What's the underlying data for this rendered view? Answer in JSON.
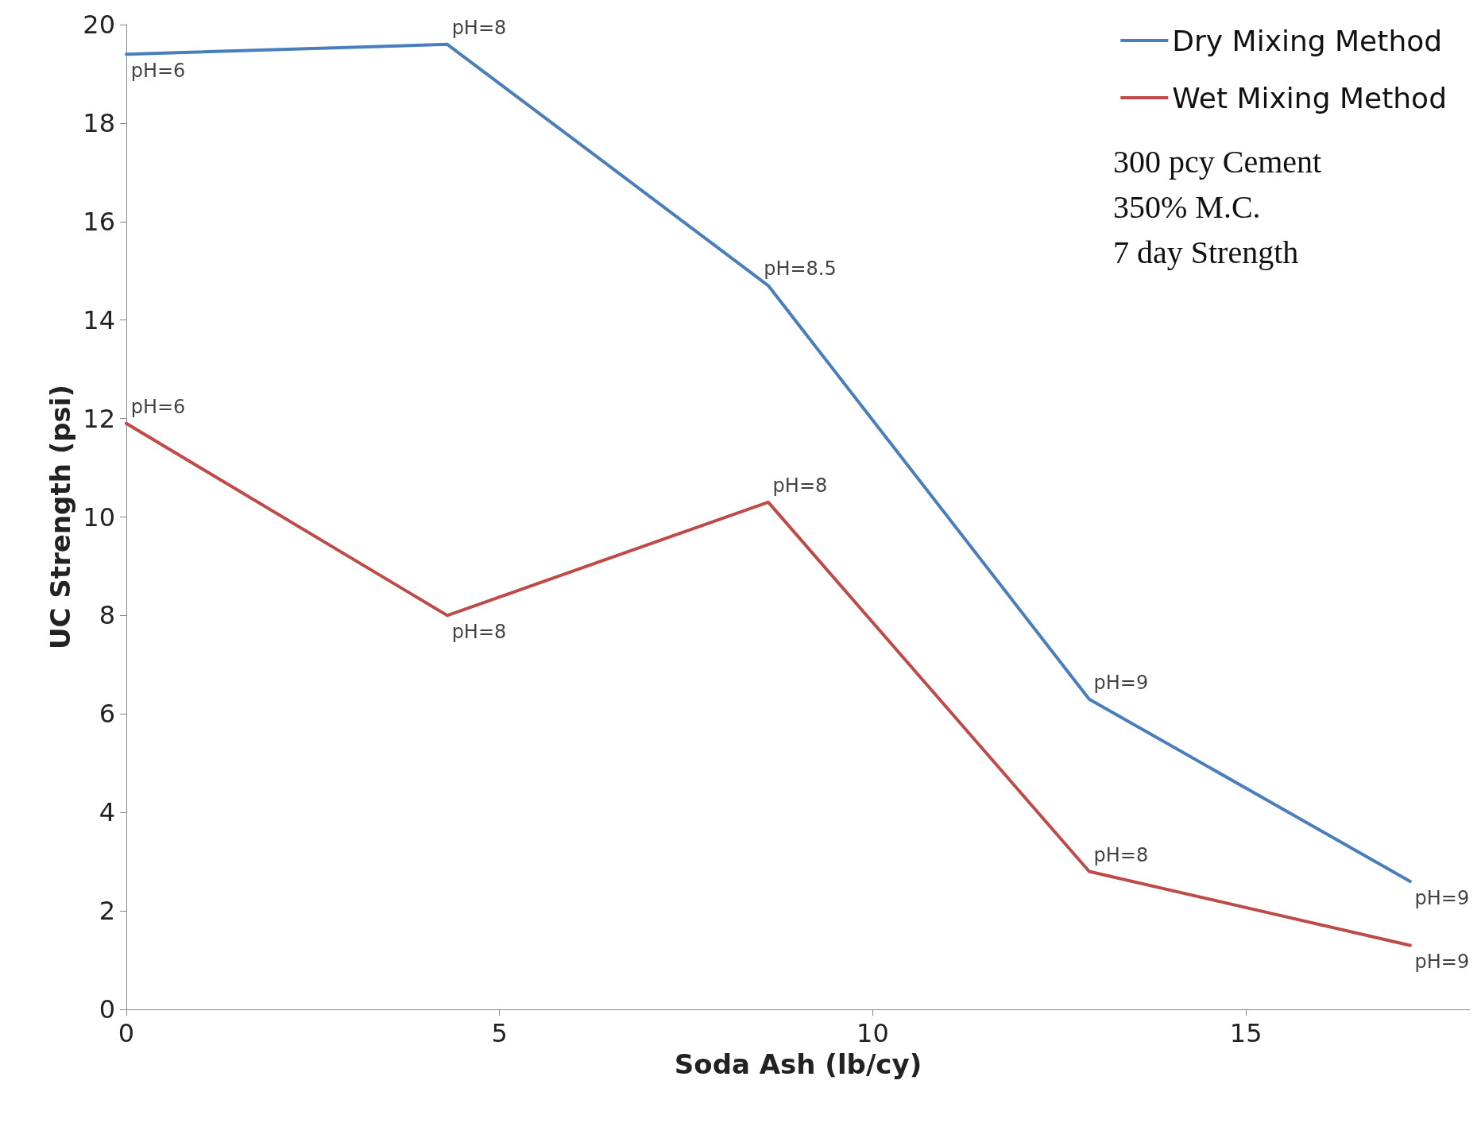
{
  "chart_data": {
    "type": "line",
    "xlabel": "Soda Ash (lb/cy)",
    "ylabel": "UC Strength (psi)",
    "x": [
      0,
      4.3,
      8.6,
      12.9,
      17.2
    ],
    "series": [
      {
        "name": "Dry Mixing Method",
        "color": "#4a7ebb",
        "values": [
          19.4,
          19.6,
          14.7,
          6.3,
          2.6
        ]
      },
      {
        "name": "Wet Mixing Method",
        "color": "#be4b48",
        "values": [
          11.9,
          8.0,
          10.3,
          2.8,
          1.3
        ]
      }
    ],
    "xlim": [
      0,
      18
    ],
    "xticks": [
      0,
      5,
      10,
      15
    ],
    "ylim": [
      0,
      20
    ],
    "yticks": [
      0,
      2,
      4,
      6,
      8,
      10,
      12,
      14,
      16,
      18,
      20
    ],
    "grid": false,
    "legend": "top right",
    "marker": "none",
    "line_style": "solid",
    "annotations": [
      {
        "text": "pH=6",
        "x": 0,
        "y": 19.4
      },
      {
        "text": "pH=8",
        "x": 4.3,
        "y": 19.6
      },
      {
        "text": "pH=8.5",
        "x": 8.6,
        "y": 14.7
      },
      {
        "text": "pH=9",
        "x": 12.9,
        "y": 6.3
      },
      {
        "text": "pH=9",
        "x": 17.2,
        "y": 2.6
      },
      {
        "text": "pH=6",
        "x": 0,
        "y": 11.9
      },
      {
        "text": "pH=8",
        "x": 4.3,
        "y": 8.0
      },
      {
        "text": "pH=8",
        "x": 8.6,
        "y": 10.3
      },
      {
        "text": "pH=8",
        "x": 12.9,
        "y": 2.8
      },
      {
        "text": "pH=9",
        "x": 17.2,
        "y": 1.3
      },
      "300 pcy Cement",
      "350% M.C.",
      "7 day Strength"
    ]
  }
}
